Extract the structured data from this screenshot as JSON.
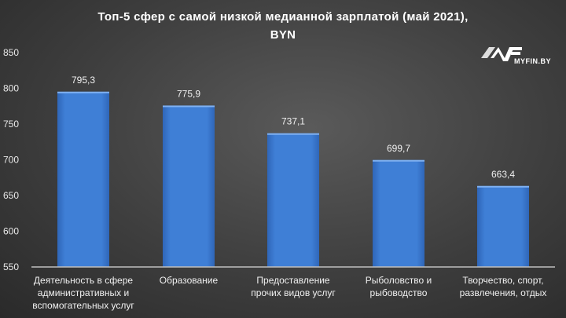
{
  "chart_data": {
    "type": "bar",
    "title": "Топ-5  сфер с самой низкой медианной зарплатой (май 2021),",
    "subtitle": "BYN",
    "categories": [
      [
        "Деятельность в сфере",
        "административных и",
        "вспомогательных услуг"
      ],
      [
        "Образование"
      ],
      [
        "Предоставление",
        "прочих видов услуг"
      ],
      [
        "Рыболовство и",
        "рыбоводство"
      ],
      [
        "Творчество, спорт,",
        "развлечения, отдых"
      ]
    ],
    "values": [
      795.3,
      775.9,
      737.1,
      699.7,
      663.4
    ],
    "data_labels": [
      "795,3",
      "775,9",
      "737,1",
      "699,7",
      "663,4"
    ],
    "ylim": [
      550,
      850
    ],
    "yticks": [
      550,
      600,
      650,
      700,
      750,
      800,
      850
    ],
    "grid": false,
    "bar_color": "#3f7fd6",
    "xlabel": "",
    "ylabel": ""
  },
  "logo": {
    "text": "MYFIN.BY"
  }
}
